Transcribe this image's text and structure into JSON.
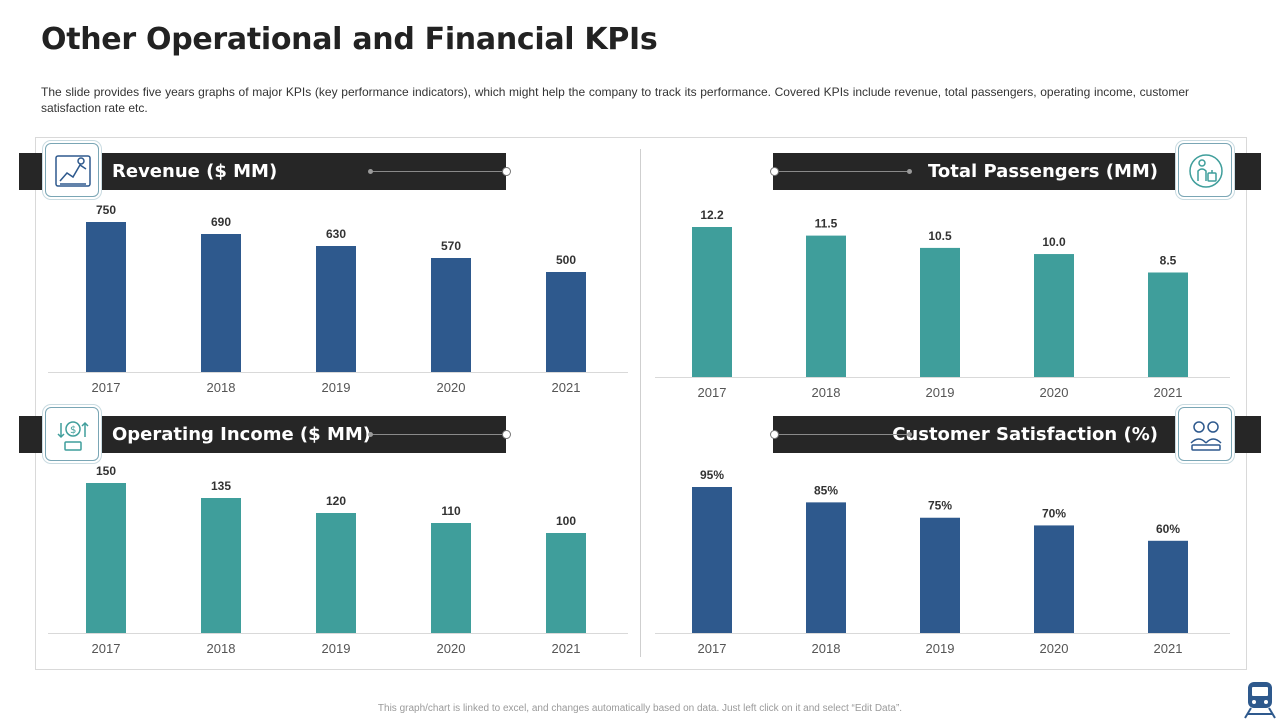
{
  "title": "Other Operational and Financial KPIs",
  "description": "The slide provides five years graphs of major KPIs (key performance indicators), which might help the company to track its performance. Covered KPIs include revenue, total passengers, operating income, customer satisfaction rate etc.",
  "footnote": "This graph/chart is linked to excel, and changes automatically based on data. Just left click on it and select “Edit Data”.",
  "colors": {
    "navy": "#2e598d",
    "teal": "#3f9e9b",
    "banner": "#262626"
  },
  "chart_data": [
    {
      "type": "bar",
      "title": "Revenue ($ MM)",
      "icon": "revenue-chart-icon",
      "color": "#2e598d",
      "categories": [
        "2017",
        "2018",
        "2019",
        "2020",
        "2021"
      ],
      "values": [
        750,
        690,
        630,
        570,
        500
      ],
      "labels": [
        "750",
        "690",
        "630",
        "570",
        "500"
      ],
      "ylim": [
        0,
        800
      ]
    },
    {
      "type": "bar",
      "title": "Total Passengers (MM)",
      "icon": "passengers-icon",
      "color": "#3f9e9b",
      "categories": [
        "2017",
        "2018",
        "2019",
        "2020",
        "2021"
      ],
      "values": [
        12.2,
        11.5,
        10.5,
        10.0,
        8.5
      ],
      "labels": [
        "12.2",
        "11.5",
        "10.5",
        "10.0",
        "8.5"
      ],
      "ylim": [
        0,
        13
      ]
    },
    {
      "type": "bar",
      "title": "Operating Income ($ MM)",
      "icon": "income-icon",
      "color": "#3f9e9b",
      "categories": [
        "2017",
        "2018",
        "2019",
        "2020",
        "2021"
      ],
      "values": [
        150,
        135,
        120,
        110,
        100
      ],
      "labels": [
        "150",
        "135",
        "120",
        "110",
        "100"
      ],
      "ylim": [
        0,
        160
      ]
    },
    {
      "type": "bar",
      "title": "Customer Satisfaction (%)",
      "icon": "customer-satisfaction-icon",
      "color": "#2e598d",
      "categories": [
        "2017",
        "2018",
        "2019",
        "2020",
        "2021"
      ],
      "values": [
        95,
        85,
        75,
        70,
        60
      ],
      "labels": [
        "95%",
        "85%",
        "75%",
        "70%",
        "60%"
      ],
      "ylim": [
        0,
        100
      ]
    }
  ]
}
